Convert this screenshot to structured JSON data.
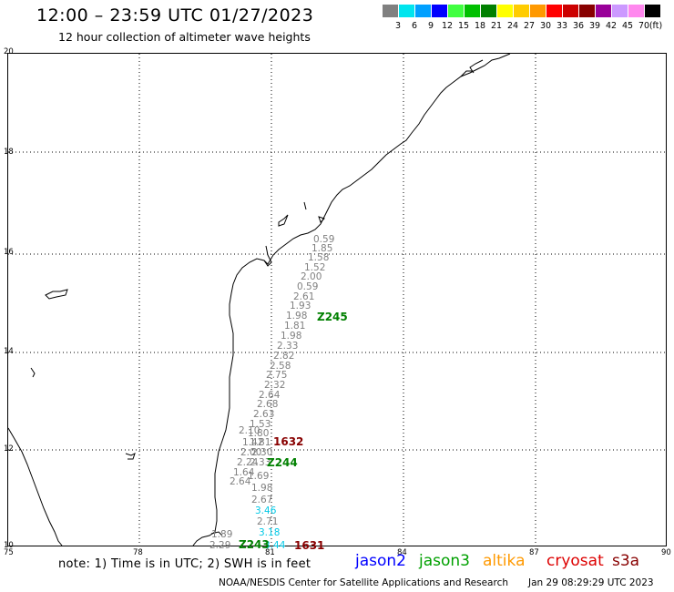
{
  "header": {
    "title": "12:00 – 23:59 UTC 01/27/2023",
    "subtitle": "12 hour collection of altimeter wave heights"
  },
  "legend": {
    "unit": "(ft)",
    "bins": [
      {
        "label": "3",
        "color": "#808080"
      },
      {
        "label": "6",
        "color": "#00e5ee"
      },
      {
        "label": "9",
        "color": "#00a0ff"
      },
      {
        "label": "12",
        "color": "#0000ff"
      },
      {
        "label": "15",
        "color": "#40ff40"
      },
      {
        "label": "18",
        "color": "#00c000"
      },
      {
        "label": "21",
        "color": "#008000"
      },
      {
        "label": "24",
        "color": "#ffff00"
      },
      {
        "label": "27",
        "color": "#ffcc00"
      },
      {
        "label": "30",
        "color": "#ff9900"
      },
      {
        "label": "33",
        "color": "#ff0000"
      },
      {
        "label": "36",
        "color": "#cc0000"
      },
      {
        "label": "39",
        "color": "#880000"
      },
      {
        "label": "42",
        "color": "#990099"
      },
      {
        "label": "45",
        "color": "#cc99ff"
      },
      {
        "label": "70",
        "color": "#ff88ee"
      },
      {
        "label": "",
        "color": "#000000"
      }
    ]
  },
  "axes": {
    "lat_labels": [
      "20",
      "18",
      "16",
      "14",
      "12",
      "10"
    ],
    "lon_labels": [
      "75",
      "78",
      "81",
      "84",
      "87",
      "90"
    ]
  },
  "swh_labels": [
    {
      "v": "0.59",
      "c": "#808080"
    },
    {
      "v": "1.85",
      "c": "#808080"
    },
    {
      "v": "1.58",
      "c": "#808080"
    },
    {
      "v": "1.52",
      "c": "#808080"
    },
    {
      "v": "2.00",
      "c": "#808080"
    },
    {
      "v": "0.59",
      "c": "#808080"
    },
    {
      "v": "2.61",
      "c": "#808080"
    },
    {
      "v": "1.93",
      "c": "#808080"
    },
    {
      "v": "1.98",
      "c": "#808080"
    },
    {
      "v": "1.81",
      "c": "#808080"
    },
    {
      "v": "1.98",
      "c": "#808080"
    },
    {
      "v": "2.33",
      "c": "#808080"
    },
    {
      "v": "2.82",
      "c": "#808080"
    },
    {
      "v": "2.58",
      "c": "#808080"
    },
    {
      "v": "2.75",
      "c": "#808080"
    },
    {
      "v": "2.32",
      "c": "#808080"
    },
    {
      "v": "2.64",
      "c": "#808080"
    },
    {
      "v": "2.68",
      "c": "#808080"
    },
    {
      "v": "2.63",
      "c": "#808080"
    },
    {
      "v": "1.53",
      "c": "#808080"
    },
    {
      "v": "2.10",
      "c": "#808080"
    },
    {
      "v": "1.80",
      "c": "#808080"
    },
    {
      "v": "1.42",
      "c": "#808080"
    },
    {
      "v": "1.81",
      "c": "#808080"
    },
    {
      "v": "2.00",
      "c": "#808080"
    },
    {
      "v": "2.30",
      "c": "#808080"
    },
    {
      "v": "2.24",
      "c": "#808080"
    },
    {
      "v": "2.33",
      "c": "#808080"
    },
    {
      "v": "1.64",
      "c": "#808080"
    },
    {
      "v": "1.69",
      "c": "#808080"
    },
    {
      "v": "2.64",
      "c": "#808080"
    },
    {
      "v": "1.98",
      "c": "#808080"
    },
    {
      "v": "2.67",
      "c": "#808080"
    },
    {
      "v": "3.46",
      "c": "#00c8e6"
    },
    {
      "v": "2.71",
      "c": "#808080"
    },
    {
      "v": "3.18",
      "c": "#00c8e6"
    },
    {
      "v": "1.89",
      "c": "#808080"
    },
    {
      "v": "2.29",
      "c": "#808080"
    },
    {
      "v": "3.44",
      "c": "#00c8e6"
    }
  ],
  "pass_labels": [
    {
      "v": "Z245",
      "c": "#008000"
    },
    {
      "v": "1632",
      "c": "#880000"
    },
    {
      "v": "Z244",
      "c": "#008000"
    },
    {
      "v": "Z243",
      "c": "#008000"
    },
    {
      "v": "1631",
      "c": "#880000"
    }
  ],
  "note": "note: 1) Time is in UTC; 2) SWH is in feet",
  "missions": [
    {
      "name": "jason2",
      "color": "#0000ff"
    },
    {
      "name": "jason3",
      "color": "#00a000"
    },
    {
      "name": "altika",
      "color": "#ff9900"
    },
    {
      "name": "cryosat",
      "color": "#dd0000"
    },
    {
      "name": "s3a",
      "color": "#880000"
    }
  ],
  "footer": {
    "credit": "NOAA/NESDIS Center for Satellite Applications and Research",
    "timestamp": "Jan 29 08:29:29 UTC 2023"
  }
}
